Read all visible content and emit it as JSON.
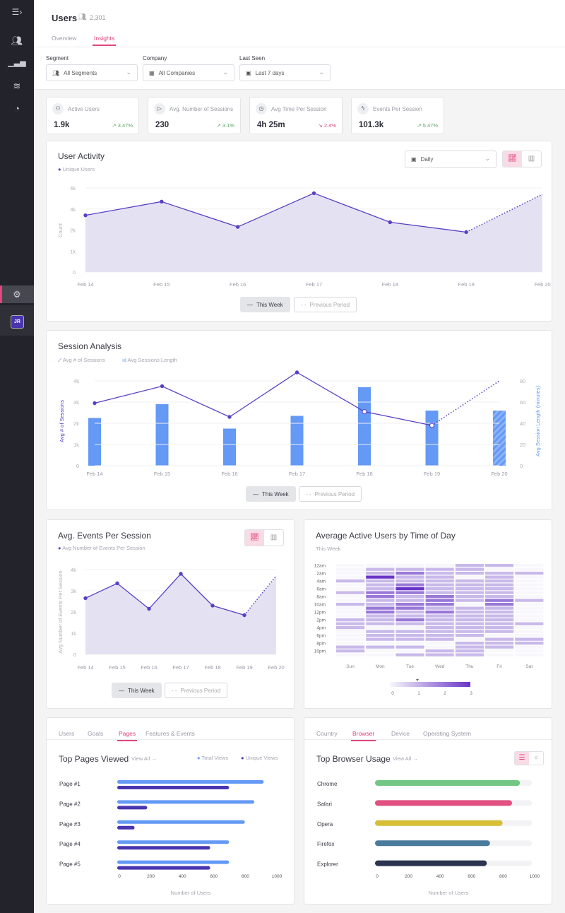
{
  "sidebar": {
    "items": [
      "menu-toggle",
      "users",
      "analytics",
      "layers",
      "dashboard"
    ],
    "settings": "settings",
    "avatar": "JR",
    "accent": "#e0457b"
  },
  "header": {
    "title": "Users",
    "count": "2,301",
    "tabs": [
      {
        "label": "Overview",
        "active": false
      },
      {
        "label": "Insights",
        "active": true
      }
    ]
  },
  "filters": [
    {
      "label": "Segment",
      "value": "All Segments",
      "icon": "users-icon"
    },
    {
      "label": "Company",
      "value": "All Companies",
      "icon": "building-icon"
    },
    {
      "label": "Last Seen",
      "value": "Last 7 days",
      "icon": "calendar-icon"
    }
  ],
  "kpis": [
    {
      "label": "Active Users",
      "value": "1.9k",
      "change": "3.47%",
      "trend": "up",
      "icon": "group-icon"
    },
    {
      "label": "Avg. Number of Sessions",
      "value": "230",
      "change": "3.1%",
      "trend": "up",
      "icon": "play-icon"
    },
    {
      "label": "Avg Time Per Session",
      "value": "4h 25m",
      "change": "2.4%",
      "trend": "down",
      "icon": "clock-icon"
    },
    {
      "label": "Events Per Session",
      "value": "101.3k",
      "change": "5.47%",
      "trend": "up",
      "icon": "bolt-icon"
    }
  ],
  "legend_buttons": {
    "this_week": "This Week",
    "previous": "Previous Period"
  },
  "chart_data": [
    {
      "id": "user-activity",
      "type": "area",
      "title": "User Activity",
      "series_label": "Unique Users",
      "interval": "Daily",
      "ylabel": "Count",
      "categories": [
        "Feb 14",
        "Feb 15",
        "Feb 16",
        "Feb 17",
        "Feb 18",
        "Feb 19",
        "Feb 20"
      ],
      "values": [
        2700,
        3350,
        2150,
        3750,
        2370,
        1900,
        3700
      ],
      "dashed_from_index": 5,
      "ylim": [
        0,
        4000
      ],
      "yticks": [
        "0",
        "1k",
        "2k",
        "3k",
        "4k"
      ],
      "color": "#5b3fc4"
    },
    {
      "id": "session-analysis",
      "type": "bar+line",
      "title": "Session Analysis",
      "line_series": {
        "name": "Avg # of Sessions",
        "values": [
          2950,
          3750,
          2300,
          4400,
          2550,
          1900,
          4000
        ],
        "ylim": [
          0,
          4000
        ],
        "yticks": [
          "0",
          "1k",
          "2k",
          "3k",
          "4k"
        ],
        "color": "#5b3fc4"
      },
      "bar_series": {
        "name": "Avg Sessions Length",
        "values": [
          45,
          58,
          35,
          47,
          74,
          52,
          52
        ],
        "ylim": [
          0,
          80
        ],
        "yticks": [
          "0",
          "20",
          "40",
          "60",
          "80"
        ],
        "color": "#6499f5"
      },
      "ylabel_left": "Avg # of Sessions",
      "ylabel_right": "Avg Session Length (minutes)",
      "categories": [
        "Feb 14",
        "Feb 15",
        "Feb 16",
        "Feb 17",
        "Feb 18",
        "Feb 19",
        "Feb 20"
      ],
      "dashed_from_index": 5
    },
    {
      "id": "events-per-session",
      "type": "area",
      "title": "Avg. Events Per Session",
      "series_label": "Avg Number of Events Per Session",
      "ylabel": "Avg Number of Events Per Session",
      "categories": [
        "Feb 14",
        "Feb 15",
        "Feb 16",
        "Feb 17",
        "Feb 18",
        "Feb 19",
        "Feb 20"
      ],
      "values": [
        2650,
        3350,
        2150,
        3800,
        2300,
        1850,
        3700
      ],
      "dashed_from_index": 5,
      "ylim": [
        0,
        4000
      ],
      "yticks": [
        "0",
        "1k",
        "2k",
        "3k",
        "4k"
      ],
      "color": "#5b3fc4"
    },
    {
      "id": "active-by-time",
      "type": "heatmap",
      "title": "Average Active Users by Time of Day",
      "subtitle": "This Week",
      "days": [
        "Sun",
        "Mon",
        "Tue",
        "Wed",
        "Thu",
        "Fri",
        "Sat"
      ],
      "hour_labels": [
        "12am",
        "2am",
        "4am",
        "6am",
        "8am",
        "10am",
        "12pm",
        "2pm",
        "4pm",
        "6pm",
        "8pm",
        "10pm"
      ],
      "values": [
        [
          0,
          0,
          0,
          0,
          1,
          0,
          0,
          1,
          0,
          0,
          1,
          0,
          0,
          0,
          1,
          1,
          1,
          0,
          0,
          0,
          0,
          1,
          1,
          0
        ],
        [
          0,
          1,
          1,
          3,
          1,
          1,
          1,
          2,
          2,
          1,
          1,
          2,
          2,
          1,
          1,
          1,
          0,
          1,
          1,
          1,
          0,
          1,
          0,
          0
        ],
        [
          0,
          1,
          2,
          1,
          1,
          2,
          3,
          2,
          1,
          1,
          2,
          2,
          1,
          1,
          2,
          1,
          0,
          1,
          1,
          1,
          0,
          1,
          0,
          1
        ],
        [
          0,
          1,
          1,
          1,
          1,
          1,
          1,
          1,
          2,
          2,
          2,
          1,
          2,
          1,
          1,
          1,
          1,
          1,
          1,
          1,
          0,
          0,
          1,
          1
        ],
        [
          1,
          1,
          1,
          0,
          1,
          1,
          1,
          1,
          1,
          1,
          0,
          1,
          1,
          1,
          1,
          1,
          1,
          1,
          1,
          0,
          1,
          1,
          1,
          1
        ],
        [
          1,
          0,
          1,
          1,
          1,
          1,
          1,
          1,
          1,
          2,
          2,
          1,
          1,
          1,
          1,
          1,
          1,
          1,
          0,
          1,
          1,
          1,
          0,
          0
        ],
        [
          0,
          0,
          1,
          0,
          0,
          0,
          0,
          0,
          0,
          1,
          0,
          0,
          0,
          0,
          0,
          1,
          0,
          0,
          0,
          1,
          1,
          0,
          0,
          0
        ]
      ],
      "scale": [
        "0",
        "1",
        "2",
        "3"
      ]
    },
    {
      "id": "top-pages",
      "type": "bar",
      "orientation": "horizontal",
      "title": "Top Pages Viewed",
      "link": "View All",
      "tabs": [
        {
          "label": "Users",
          "active": false
        },
        {
          "label": "Goals",
          "active": false
        },
        {
          "label": "Pages",
          "active": true
        },
        {
          "label": "Features & Events",
          "active": false
        }
      ],
      "categories": [
        "Page #1",
        "Page #2",
        "Page #3",
        "Page #4",
        "Page #5"
      ],
      "series": [
        {
          "name": "Total Views",
          "values": [
            930,
            870,
            810,
            710,
            710
          ],
          "color": "#6499f5"
        },
        {
          "name": "Unique Views",
          "values": [
            710,
            190,
            110,
            590,
            590
          ],
          "color": "#4a35b0"
        }
      ],
      "xlim": [
        0,
        1000
      ],
      "xticks": [
        "0",
        "200",
        "400",
        "600",
        "800",
        "1000"
      ],
      "xlabel": "Number of Users"
    },
    {
      "id": "top-browsers",
      "type": "bar",
      "orientation": "horizontal",
      "title": "Top Browser Usage",
      "link": "View All",
      "tabs": [
        {
          "label": "Country",
          "active": false
        },
        {
          "label": "Browser",
          "active": true
        },
        {
          "label": "Device",
          "active": false
        },
        {
          "label": "Operating System",
          "active": false
        }
      ],
      "categories": [
        "Chrome",
        "Safari",
        "Opera",
        "Firefox",
        "Explorer"
      ],
      "values": [
        920,
        870,
        810,
        730,
        710
      ],
      "colors": [
        "#72c784",
        "#e05080",
        "#d6bf35",
        "#4a7a9c",
        "#2a3450"
      ],
      "xlim": [
        0,
        1000
      ],
      "xticks": [
        "0",
        "200",
        "400",
        "600",
        "800",
        "1000"
      ],
      "xlabel": "Number of Users"
    }
  ]
}
